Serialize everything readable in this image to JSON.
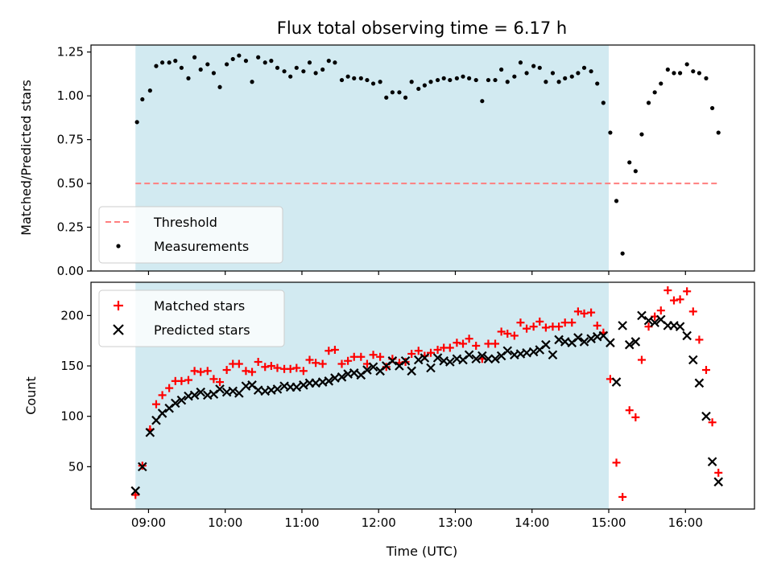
{
  "figure": {
    "title": "Flux total observing time = 6.17 h",
    "xlabel": "Time (UTC)",
    "xticks": [
      {
        "value": 9,
        "label": "09:00"
      },
      {
        "value": 10,
        "label": "10:00"
      },
      {
        "value": 11,
        "label": "11:00"
      },
      {
        "value": 12,
        "label": "12:00"
      },
      {
        "value": 13,
        "label": "13:00"
      },
      {
        "value": 14,
        "label": "14:00"
      },
      {
        "value": 15,
        "label": "15:00"
      },
      {
        "value": 16,
        "label": "16:00"
      }
    ],
    "xlim": [
      8.25,
      16.9
    ],
    "shaded_interval": {
      "x": [
        8.83,
        15.0
      ],
      "color": "#add8e6"
    }
  },
  "chart_data": [
    {
      "type": "scatter",
      "ylabel": "Matched/Predicted stars",
      "ylim": [
        0.0,
        1.29
      ],
      "yticks": [
        0.0,
        0.25,
        0.5,
        0.75,
        1.0,
        1.25
      ],
      "ytick_labels": [
        "0.00",
        "0.25",
        "0.50",
        "0.75",
        "1.00",
        "1.25"
      ],
      "legend": {
        "position": "lower-left",
        "entries": [
          "Threshold",
          "Measurements"
        ]
      },
      "threshold": {
        "name": "Threshold",
        "y": 0.5,
        "x": [
          8.83,
          16.42
        ],
        "color": "#ff7f7f",
        "style": "dashed"
      },
      "series": [
        {
          "name": "Measurements",
          "color": "#000000",
          "marker": "dot",
          "x": [
            8.85,
            8.92,
            9.02,
            9.1,
            9.18,
            9.27,
            9.35,
            9.43,
            9.52,
            9.6,
            9.68,
            9.77,
            9.85,
            9.93,
            10.02,
            10.1,
            10.18,
            10.27,
            10.35,
            10.43,
            10.52,
            10.6,
            10.68,
            10.77,
            10.85,
            10.93,
            11.02,
            11.1,
            11.18,
            11.27,
            11.35,
            11.43,
            11.52,
            11.6,
            11.68,
            11.77,
            11.85,
            11.93,
            12.02,
            12.1,
            12.18,
            12.27,
            12.35,
            12.43,
            12.52,
            12.6,
            12.68,
            12.77,
            12.85,
            12.93,
            13.02,
            13.1,
            13.18,
            13.27,
            13.35,
            13.43,
            13.52,
            13.6,
            13.68,
            13.77,
            13.85,
            13.93,
            14.02,
            14.1,
            14.18,
            14.27,
            14.35,
            14.43,
            14.52,
            14.6,
            14.68,
            14.77,
            14.85,
            14.93,
            15.02,
            15.1,
            15.18,
            15.27,
            15.35,
            15.43,
            15.52,
            15.6,
            15.68,
            15.77,
            15.85,
            15.93,
            16.02,
            16.1,
            16.18,
            16.27,
            16.35,
            16.43
          ],
          "y": [
            0.85,
            0.98,
            1.03,
            1.17,
            1.19,
            1.19,
            1.2,
            1.16,
            1.1,
            1.22,
            1.15,
            1.18,
            1.13,
            1.05,
            1.18,
            1.21,
            1.23,
            1.2,
            1.08,
            1.22,
            1.19,
            1.2,
            1.16,
            1.14,
            1.11,
            1.16,
            1.14,
            1.19,
            1.13,
            1.15,
            1.2,
            1.19,
            1.09,
            1.11,
            1.1,
            1.1,
            1.09,
            1.07,
            1.08,
            0.99,
            1.02,
            1.02,
            0.99,
            1.08,
            1.04,
            1.06,
            1.08,
            1.09,
            1.1,
            1.09,
            1.1,
            1.11,
            1.1,
            1.09,
            0.97,
            1.09,
            1.09,
            1.15,
            1.08,
            1.11,
            1.19,
            1.13,
            1.17,
            1.16,
            1.08,
            1.13,
            1.08,
            1.1,
            1.11,
            1.13,
            1.16,
            1.14,
            1.07,
            0.96,
            0.79,
            0.4,
            0.1,
            0.62,
            0.57,
            0.78,
            0.96,
            1.02,
            1.07,
            1.15,
            1.13,
            1.13,
            1.18,
            1.14,
            1.13,
            1.1,
            0.93,
            0.79
          ]
        }
      ]
    },
    {
      "type": "scatter",
      "ylabel": "Count",
      "ylim": [
        8,
        233
      ],
      "yticks": [
        50,
        100,
        150,
        200
      ],
      "ytick_labels": [
        "50",
        "100",
        "150",
        "200"
      ],
      "legend": {
        "position": "top-left",
        "entries": [
          "Matched stars",
          "Predicted stars"
        ]
      },
      "series": [
        {
          "name": "Matched stars",
          "color": "#ff0000",
          "marker": "plus",
          "x": [
            8.83,
            8.92,
            9.02,
            9.1,
            9.18,
            9.27,
            9.35,
            9.43,
            9.52,
            9.6,
            9.68,
            9.77,
            9.85,
            9.93,
            10.02,
            10.1,
            10.18,
            10.27,
            10.35,
            10.43,
            10.52,
            10.6,
            10.68,
            10.77,
            10.85,
            10.93,
            11.02,
            11.1,
            11.18,
            11.27,
            11.35,
            11.43,
            11.52,
            11.6,
            11.68,
            11.77,
            11.85,
            11.93,
            12.02,
            12.1,
            12.18,
            12.27,
            12.35,
            12.43,
            12.52,
            12.6,
            12.68,
            12.77,
            12.85,
            12.93,
            13.02,
            13.1,
            13.18,
            13.27,
            13.35,
            13.43,
            13.52,
            13.6,
            13.68,
            13.77,
            13.85,
            13.93,
            14.02,
            14.1,
            14.18,
            14.27,
            14.35,
            14.43,
            14.52,
            14.6,
            14.68,
            14.77,
            14.85,
            14.93,
            15.02,
            15.1,
            15.18,
            15.27,
            15.35,
            15.43,
            15.52,
            15.6,
            15.68,
            15.77,
            15.85,
            15.93,
            16.02,
            16.1,
            16.18,
            16.27,
            16.35,
            16.43
          ],
          "y": [
            22,
            51,
            87,
            112,
            121,
            128,
            135,
            135,
            136,
            145,
            144,
            145,
            137,
            134,
            146,
            152,
            152,
            145,
            144,
            154,
            149,
            150,
            148,
            147,
            147,
            148,
            145,
            156,
            153,
            152,
            165,
            166,
            152,
            155,
            159,
            159,
            152,
            161,
            159,
            149,
            157,
            153,
            154,
            162,
            165,
            160,
            163,
            166,
            168,
            168,
            173,
            172,
            177,
            170,
            157,
            172,
            172,
            184,
            182,
            180,
            193,
            187,
            189,
            194,
            188,
            189,
            189,
            193,
            193,
            204,
            202,
            203,
            190,
            183,
            137,
            54,
            20,
            106,
            99,
            156,
            189,
            199,
            205,
            225,
            215,
            216,
            224,
            204,
            176,
            146,
            94,
            44
          ]
        },
        {
          "name": "Predicted stars",
          "color": "#000000",
          "marker": "x",
          "x": [
            8.83,
            8.92,
            9.02,
            9.1,
            9.18,
            9.27,
            9.35,
            9.43,
            9.52,
            9.6,
            9.68,
            9.77,
            9.85,
            9.93,
            10.02,
            10.1,
            10.18,
            10.27,
            10.35,
            10.43,
            10.52,
            10.6,
            10.68,
            10.77,
            10.85,
            10.93,
            11.02,
            11.1,
            11.18,
            11.27,
            11.35,
            11.43,
            11.52,
            11.6,
            11.68,
            11.77,
            11.85,
            11.93,
            12.02,
            12.1,
            12.18,
            12.27,
            12.35,
            12.43,
            12.52,
            12.6,
            12.68,
            12.77,
            12.85,
            12.93,
            13.02,
            13.1,
            13.18,
            13.27,
            13.35,
            13.43,
            13.52,
            13.6,
            13.68,
            13.77,
            13.85,
            13.93,
            14.02,
            14.1,
            14.18,
            14.27,
            14.35,
            14.43,
            14.52,
            14.6,
            14.68,
            14.77,
            14.85,
            14.93,
            15.02,
            15.1,
            15.18,
            15.27,
            15.35,
            15.43,
            15.52,
            15.6,
            15.68,
            15.77,
            15.85,
            15.93,
            16.02,
            16.1,
            16.18,
            16.27,
            16.35,
            16.43
          ],
          "y": [
            26,
            50,
            84,
            96,
            103,
            108,
            113,
            116,
            120,
            121,
            124,
            121,
            122,
            127,
            124,
            125,
            123,
            130,
            131,
            126,
            125,
            126,
            127,
            130,
            129,
            129,
            131,
            133,
            133,
            134,
            135,
            138,
            139,
            142,
            143,
            141,
            146,
            149,
            145,
            150,
            155,
            150,
            155,
            145,
            156,
            158,
            148,
            158,
            155,
            154,
            157,
            156,
            161,
            157,
            160,
            157,
            157,
            160,
            165,
            161,
            162,
            163,
            164,
            166,
            171,
            161,
            176,
            174,
            173,
            178,
            174,
            177,
            179,
            180,
            173,
            134,
            190,
            171,
            174,
            200,
            195,
            193,
            196,
            190,
            190,
            189,
            180,
            156,
            133,
            100,
            55,
            35
          ]
        }
      ]
    }
  ]
}
